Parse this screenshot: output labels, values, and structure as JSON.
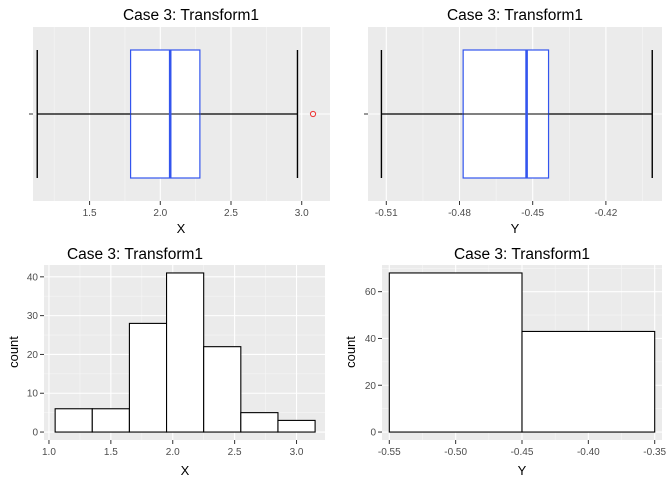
{
  "chart_data": [
    {
      "type": "boxplot",
      "title": "Case 3: Transform1",
      "xlabel": "X",
      "ylabel": "",
      "xlim": [
        1.1,
        3.2
      ],
      "xticks": [
        "1.5",
        "2.0",
        "2.5",
        "3.0"
      ],
      "xtick_values": [
        1.5,
        2.0,
        2.5,
        3.0
      ],
      "yticks": [
        ""
      ],
      "box": {
        "whisker_low": 1.13,
        "q1": 1.79,
        "median": 2.07,
        "q3": 2.28,
        "whisker_high": 2.97
      },
      "outliers": [
        3.08
      ],
      "box_color": "#3355ee",
      "outlier_color": "#ee3333",
      "grid": true
    },
    {
      "type": "boxplot",
      "title": "Case 3: Transform1",
      "xlabel": "Y",
      "ylabel": "",
      "xlim": [
        -0.5175,
        -0.397
      ],
      "xticks": [
        "-0.51",
        "-0.48",
        "-0.45",
        "-0.42"
      ],
      "xtick_values": [
        -0.51,
        -0.48,
        -0.45,
        -0.42
      ],
      "yticks": [
        ""
      ],
      "box": {
        "whisker_low": -0.512,
        "q1": -0.4785,
        "median": -0.4525,
        "q3": -0.4435,
        "whisker_high": -0.401
      },
      "outliers": [],
      "box_color": "#3355ee",
      "grid": true
    },
    {
      "type": "histogram",
      "title": "Case 3: Transform1",
      "xlabel": "X",
      "ylabel": "count",
      "xlim": [
        0.96,
        3.23
      ],
      "ylim": [
        -2.05,
        43.05
      ],
      "xticks": [
        "1.0",
        "1.5",
        "2.0",
        "2.5",
        "3.0"
      ],
      "xtick_values": [
        1.0,
        1.5,
        2.0,
        2.5,
        3.0
      ],
      "yticks": [
        "0",
        "10",
        "20",
        "30",
        "40"
      ],
      "ytick_values": [
        0,
        10,
        20,
        30,
        40
      ],
      "bin_edges": [
        1.05,
        1.35,
        1.65,
        1.95,
        2.25,
        2.55,
        2.85,
        3.15
      ],
      "counts": [
        6,
        6,
        28,
        41,
        22,
        5,
        3
      ],
      "grid": true
    },
    {
      "type": "histogram",
      "title": "Case 3: Transform1",
      "xlabel": "Y",
      "ylabel": "count",
      "xlim": [
        -0.5555,
        -0.3445
      ],
      "ylim": [
        -3.4,
        71.4
      ],
      "xticks": [
        "-0.55",
        "-0.50",
        "-0.45",
        "-0.40",
        "-0.35"
      ],
      "xtick_values": [
        -0.55,
        -0.5,
        -0.45,
        -0.4,
        -0.35
      ],
      "yticks": [
        "0",
        "20",
        "40",
        "60"
      ],
      "ytick_values": [
        0,
        20,
        40,
        60
      ],
      "bin_edges": [
        -0.55,
        -0.45,
        -0.35
      ],
      "counts": [
        68,
        43
      ],
      "grid": true
    }
  ]
}
